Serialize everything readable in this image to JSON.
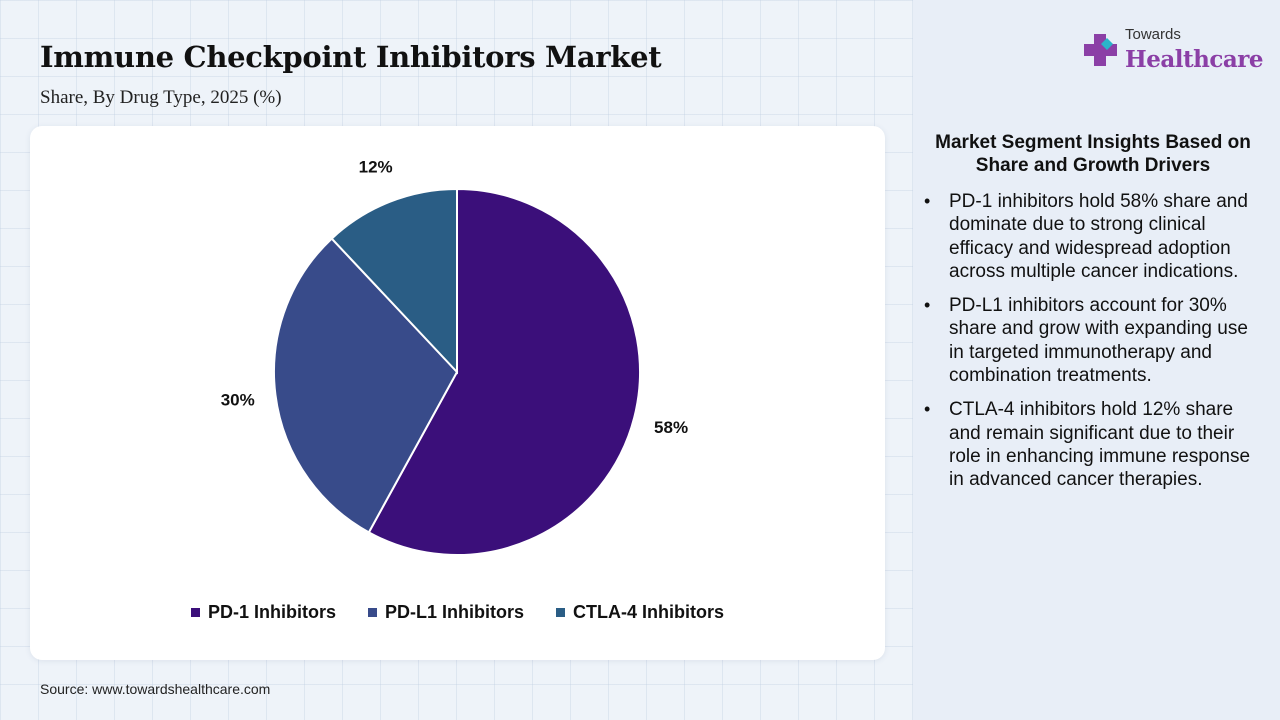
{
  "header": {
    "title": "Immune Checkpoint Inhibitors Market",
    "subtitle": "Share, By Drug Type, 2025 (%)"
  },
  "brand": {
    "line1": "Towards",
    "line2": "Healthcare",
    "icon": "medical-cross-icon",
    "colors": {
      "cross_primary": "#8b3fa6",
      "cross_secondary": "#2bb3c9"
    }
  },
  "chart_data": {
    "type": "pie",
    "categories": [
      "PD-1 Inhibitors",
      "PD-L1 Inhibitors",
      "CTLA-4 Inhibitors"
    ],
    "values": [
      58,
      30,
      12
    ],
    "labels": [
      "58%",
      "30%",
      "12%"
    ],
    "colors": [
      "#3b0f7a",
      "#384b8a",
      "#2a5d85"
    ],
    "legend_position": "bottom",
    "start_angle": "12 o'clock, clockwise"
  },
  "insights": {
    "title": "Market Segment Insights Based on Share and Growth Drivers",
    "items": [
      "PD-1 inhibitors hold 58% share and dominate due to strong clinical efficacy and widespread adoption across multiple cancer indications.",
      "PD-L1 inhibitors account for 30% share and grow with expanding use in targeted immunotherapy and combination treatments.",
      "CTLA-4 inhibitors hold 12% share and remain significant due to their role in enhancing immune response in advanced cancer therapies."
    ]
  },
  "footer": {
    "source": "Source: www.towardshealthcare.com"
  }
}
